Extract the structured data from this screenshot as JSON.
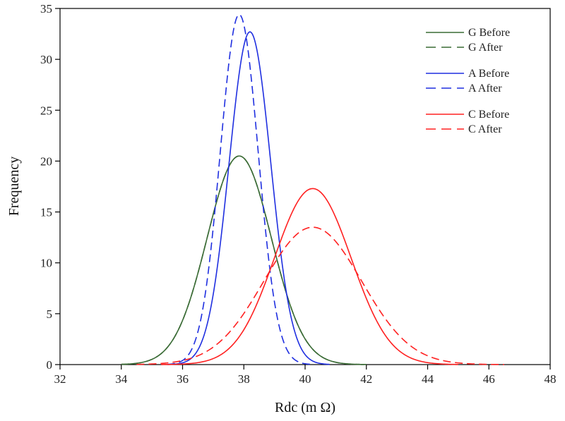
{
  "chart_data": {
    "type": "line",
    "title": "",
    "xlabel": "Rdc (m Ω)",
    "ylabel": "Frequency",
    "xlim": [
      32,
      48
    ],
    "ylim": [
      0,
      35
    ],
    "x_ticks": [
      32,
      34,
      36,
      38,
      40,
      42,
      44,
      46,
      48
    ],
    "y_ticks": [
      0,
      5,
      10,
      15,
      20,
      25,
      30,
      35
    ],
    "grid": false,
    "legend_position": "top-right",
    "series": [
      {
        "name": "G Before",
        "color": "#3a6b35",
        "dash": "solid",
        "mean": 37.85,
        "sd": 1.05,
        "peak": 20.5,
        "x_range": [
          34.0,
          42.0
        ]
      },
      {
        "name": "G After",
        "color": "#3a6b35",
        "dash": "dashed",
        "mean": 37.85,
        "sd": 1.05,
        "peak": 20.5,
        "x_range": [
          34.0,
          42.0
        ]
      },
      {
        "name": "A Before",
        "color": "#1f2fe0",
        "dash": "solid",
        "mean": 38.2,
        "sd": 0.68,
        "peak": 32.7,
        "x_range": [
          35.5,
          40.8
        ]
      },
      {
        "name": "A After",
        "color": "#1f2fe0",
        "dash": "dashed",
        "mean": 37.85,
        "sd": 0.62,
        "peak": 34.4,
        "x_range": [
          35.5,
          40.2
        ]
      },
      {
        "name": "C Before",
        "color": "#ff2020",
        "dash": "solid",
        "mean": 40.25,
        "sd": 1.25,
        "peak": 17.3,
        "x_range": [
          35.3,
          45.0
        ]
      },
      {
        "name": "C After",
        "color": "#ff2020",
        "dash": "dashed",
        "mean": 40.25,
        "sd": 1.6,
        "peak": 13.5,
        "x_range": [
          34.5,
          46.5
        ]
      }
    ]
  }
}
